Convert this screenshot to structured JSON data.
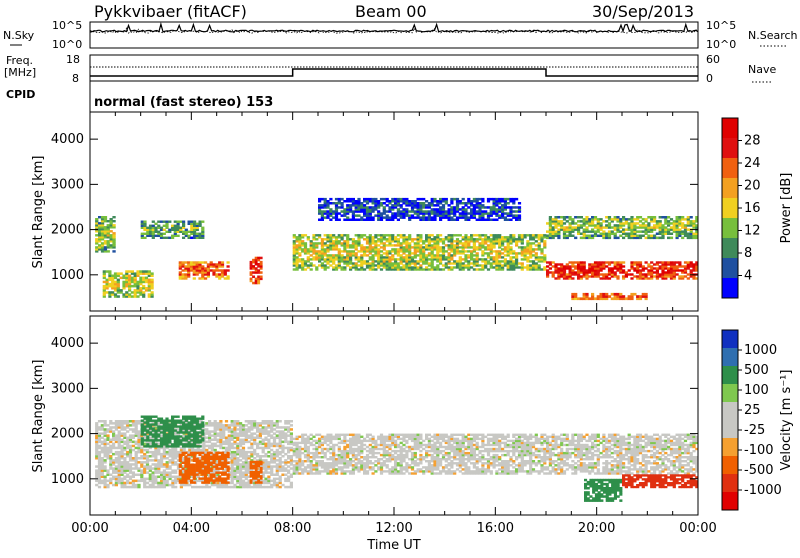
{
  "header": {
    "radar": "Pykkvibaer (fitACF)",
    "beam": "Beam 00",
    "date": "30/Sep/2013"
  },
  "top_panels": {
    "nsky_label": "N.Sky",
    "nsky_ticks": [
      "10^5",
      "10^0"
    ],
    "nsearch_label": "N.Search",
    "nsearch_ticks": [
      "10^5",
      "10^0"
    ],
    "freq_label": "Freq.",
    "freq_unit": "[MHz]",
    "freq_ticks": [
      "18",
      "8"
    ],
    "nave_label": "Nave",
    "nave_ticks": [
      "60",
      "0"
    ],
    "cpid_label": "CPID",
    "cpid_text": "normal (fast stereo) 153"
  },
  "colors": {
    "power": [
      "#0000ff",
      "#1f50a0",
      "#3f8a5a",
      "#77bf3c",
      "#f0d020",
      "#f3a020",
      "#f06010",
      "#e01010",
      "#e00000"
    ],
    "velocity": [
      "#1030c0",
      "#2f6fb0",
      "#2e8f4a",
      "#7fc84f",
      "#c8c8c4",
      "#c8c8c4",
      "#f5a030",
      "#f06000",
      "#e03010",
      "#e00000"
    ]
  },
  "chart_data": [
    {
      "type": "heatmap",
      "panel": "power",
      "xlabel": "",
      "ylabel": "Slant Range [km]",
      "xlim": [
        0,
        24
      ],
      "ylim": [
        200,
        4600
      ],
      "yticks": [
        "1000",
        "2000",
        "3000",
        "4000"
      ],
      "colorbar": {
        "label": "Power [dB]",
        "ticks": [
          "28",
          "24",
          "20",
          "16",
          "12",
          "8",
          "4"
        ],
        "range": [
          0,
          32
        ]
      },
      "features": [
        {
          "description": "band",
          "t": [
            0.2,
            1.0
          ],
          "range_km": [
            1500,
            2300
          ],
          "power_db": 14
        },
        {
          "description": "band",
          "t": [
            0.5,
            2.5
          ],
          "range_km": [
            500,
            1100
          ],
          "power_db": 16
        },
        {
          "description": "band",
          "t": [
            2.0,
            4.5
          ],
          "range_km": [
            1800,
            2200
          ],
          "power_db": 12
        },
        {
          "description": "band",
          "t": [
            3.5,
            5.5
          ],
          "range_km": [
            900,
            1300
          ],
          "power_db": 24
        },
        {
          "description": "band",
          "t": [
            6.3,
            6.8
          ],
          "range_km": [
            800,
            1400
          ],
          "power_db": 28
        },
        {
          "description": "band",
          "t": [
            8.0,
            18.0
          ],
          "range_km": [
            1100,
            1900
          ],
          "power_db": 16
        },
        {
          "description": "band",
          "t": [
            9.0,
            17.0
          ],
          "range_km": [
            2200,
            2700
          ],
          "power_db": 6
        },
        {
          "description": "band",
          "t": [
            18.0,
            24.0
          ],
          "range_km": [
            900,
            1300
          ],
          "power_db": 28
        },
        {
          "description": "band",
          "t": [
            18.0,
            24.0
          ],
          "range_km": [
            1800,
            2300
          ],
          "power_db": 14
        },
        {
          "description": "band",
          "t": [
            19.0,
            22.0
          ],
          "range_km": [
            450,
            600
          ],
          "power_db": 24
        }
      ]
    },
    {
      "type": "heatmap",
      "panel": "velocity",
      "xlabel": "Time UT",
      "ylabel": "Slant Range [km]",
      "xlim": [
        0,
        24
      ],
      "ylim": [
        200,
        4600
      ],
      "xticks": [
        "00:00",
        "04:00",
        "08:00",
        "12:00",
        "16:00",
        "20:00",
        "00:00"
      ],
      "yticks": [
        "1000",
        "2000",
        "3000",
        "4000"
      ],
      "colorbar": {
        "label": "Velocity [m s⁻¹]",
        "ticks": [
          "1000",
          "500",
          "100",
          "25",
          "-25",
          "-100",
          "-500",
          "-1000"
        ]
      },
      "features": [
        {
          "description": "band",
          "t": [
            0.2,
            8.0
          ],
          "range_km": [
            800,
            2300
          ],
          "velocity": 0
        },
        {
          "description": "band",
          "t": [
            2.0,
            4.5
          ],
          "range_km": [
            1700,
            2400
          ],
          "velocity": 200
        },
        {
          "description": "band",
          "t": [
            3.5,
            5.5
          ],
          "range_km": [
            900,
            1600
          ],
          "velocity": -300
        },
        {
          "description": "band",
          "t": [
            6.3,
            6.8
          ],
          "range_km": [
            900,
            1400
          ],
          "velocity": -300
        },
        {
          "description": "band",
          "t": [
            8.0,
            24.0
          ],
          "range_km": [
            1100,
            2000
          ],
          "velocity": 0
        },
        {
          "description": "band",
          "t": [
            19.5,
            21.0
          ],
          "range_km": [
            500,
            1000
          ],
          "velocity": 150
        },
        {
          "description": "band",
          "t": [
            21.0,
            24.0
          ],
          "range_km": [
            800,
            1100
          ],
          "velocity": -600
        }
      ]
    }
  ]
}
